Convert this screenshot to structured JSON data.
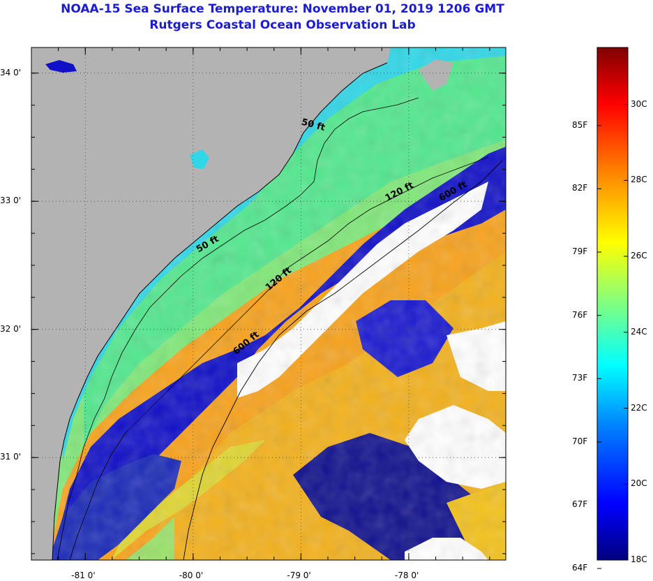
{
  "header": {
    "title": "NOAA-15 Sea Surface Temperature:  November 01, 2019 1206 GMT",
    "subtitle": "Rutgers Coastal Ocean Observation Lab"
  },
  "map": {
    "lon_range": [
      -81.5,
      -77.1
    ],
    "lat_range": [
      30.2,
      34.2
    ],
    "lon_ticks": [
      {
        "value": -81,
        "label": "-81 0'"
      },
      {
        "value": -80,
        "label": "-80 0'"
      },
      {
        "value": -79,
        "label": "-79 0'"
      },
      {
        "value": -78,
        "label": "-78 0'"
      }
    ],
    "lat_ticks": [
      {
        "value": 34,
        "label": "34 0'"
      },
      {
        "value": 33,
        "label": "33 0'"
      },
      {
        "value": 32,
        "label": "32 0'"
      },
      {
        "value": 31,
        "label": "31 0'"
      }
    ],
    "contour_labels": [
      {
        "text": "50 ft",
        "lon": -79.0,
        "lat": 33.6,
        "angle": 15
      },
      {
        "text": "120 ft",
        "lon": -78.2,
        "lat": 33.0,
        "angle": -28
      },
      {
        "text": "600 ft",
        "lon": -77.7,
        "lat": 33.0,
        "angle": -30
      },
      {
        "text": "50 ft",
        "lon": -79.95,
        "lat": 32.6,
        "angle": -30
      },
      {
        "text": "120 ft",
        "lon": -79.3,
        "lat": 32.3,
        "angle": -40
      },
      {
        "text": "600 ft",
        "lon": -79.6,
        "lat": 31.8,
        "angle": -40
      }
    ],
    "colors": {
      "land": "#b3b3b3",
      "cloud": "#ffffff",
      "contour": "#000000"
    }
  },
  "colorbar": {
    "min_c": 18,
    "max_c": 31.5,
    "f_labels": [
      "85F",
      "82F",
      "79F",
      "76F",
      "73F",
      "70F",
      "67F",
      "64F"
    ],
    "f_values": [
      85,
      82,
      79,
      76,
      73,
      70,
      67,
      64
    ],
    "c_labels": [
      "30C",
      "28C",
      "26C",
      "24C",
      "22C",
      "20C",
      "18C"
    ],
    "c_values": [
      30,
      28,
      26,
      24,
      22,
      20,
      18
    ]
  }
}
